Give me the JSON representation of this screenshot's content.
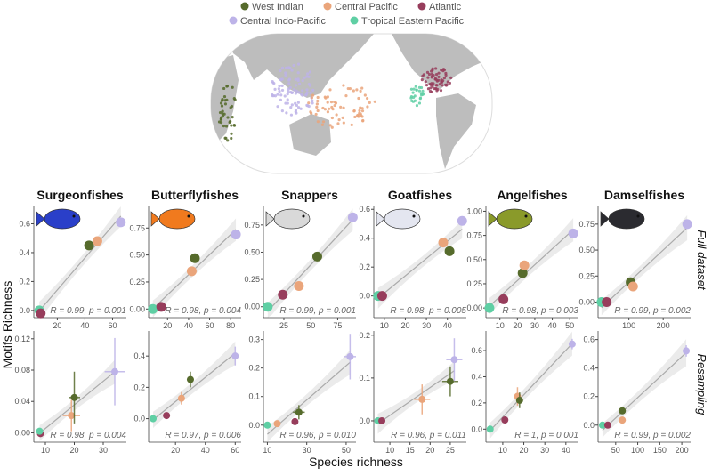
{
  "legend": {
    "items": [
      {
        "name": "West Indian",
        "color": "#566b2c"
      },
      {
        "name": "Central Pacific",
        "color": "#eaa57b"
      },
      {
        "name": "Atlantic",
        "color": "#973d5c"
      },
      {
        "name": "Central Indo-Pacific",
        "color": "#bdb3e8"
      },
      {
        "name": "Tropical Eastern Pacific",
        "color": "#5fcfa4"
      }
    ]
  },
  "chart_data": {
    "type": "scatter",
    "xlabel": "Species richness",
    "ylabel": "Motifs Richness",
    "row_labels": [
      "Full dataset",
      "Resampling"
    ],
    "grid": false,
    "fit": "linear regression line with gray confidence band",
    "panels": [
      {
        "family": "Surgeonfishes",
        "fish_color": "#2a3fc9",
        "full": {
          "xlim": [
            3,
            70
          ],
          "ylim": [
            -0.05,
            0.72
          ],
          "xticks": [
            20,
            40,
            60
          ],
          "yticks": [
            "0.0",
            "0.2",
            "0.4",
            "0.6"
          ],
          "stat": "R = 0.99, p = 0.001",
          "points": [
            {
              "region": "Tropical Eastern Pacific",
              "x": 7,
              "y": 0.0
            },
            {
              "region": "Atlantic",
              "x": 8,
              "y": -0.02
            },
            {
              "region": "West Indian",
              "x": 43,
              "y": 0.45
            },
            {
              "region": "Central Pacific",
              "x": 49,
              "y": 0.48
            },
            {
              "region": "Central Indo-Pacific",
              "x": 66,
              "y": 0.61
            }
          ]
        },
        "resampling": {
          "xlim": [
            6,
            38
          ],
          "ylim": [
            -0.012,
            0.13
          ],
          "xticks": [
            10,
            20,
            30
          ],
          "yticks": [
            "0.00",
            "0.04",
            "0.08",
            "0.12"
          ],
          "stat": "R = 0.98, p = 0.004",
          "points": [
            {
              "region": "Atlantic",
              "x": 8.3,
              "y": -0.001
            },
            {
              "region": "Tropical Eastern Pacific",
              "x": 8,
              "y": 0.002
            },
            {
              "region": "Central Pacific",
              "x": 19,
              "y": 0.022,
              "xerr": 3,
              "yerr": 0.02
            },
            {
              "region": "West Indian",
              "x": 20,
              "y": 0.045,
              "xerr": 2,
              "yerr": 0.033
            },
            {
              "region": "Central Indo-Pacific",
              "x": 34,
              "y": 0.078,
              "xerr": 3.5,
              "yerr": 0.043
            }
          ]
        }
      },
      {
        "family": "Butterflyfishes",
        "fish_color": "#f07a1e",
        "full": {
          "xlim": [
            2,
            90
          ],
          "ylim": [
            -0.08,
            0.95
          ],
          "xticks": [
            20,
            40,
            60,
            80
          ],
          "yticks": [
            "0.00",
            "0.25",
            "0.50",
            "0.75"
          ],
          "stat": "R = 0.98, p = 0.004",
          "points": [
            {
              "region": "Tropical Eastern Pacific",
              "x": 6,
              "y": 0.0
            },
            {
              "region": "Atlantic",
              "x": 14,
              "y": 0.02
            },
            {
              "region": "Central Pacific",
              "x": 43,
              "y": 0.35
            },
            {
              "region": "West Indian",
              "x": 46,
              "y": 0.47
            },
            {
              "region": "Central Indo-Pacific",
              "x": 85,
              "y": 0.69
            }
          ]
        },
        "resampling": {
          "xlim": [
            2,
            64
          ],
          "ylim": [
            -0.15,
            0.56
          ],
          "xticks": [
            20,
            40,
            60
          ],
          "yticks": [
            "0.0",
            "0.2",
            "0.4"
          ],
          "stat": "R = 0.97, p = 0.006",
          "points": [
            {
              "region": "Tropical Eastern Pacific",
              "x": 5,
              "y": 0.0
            },
            {
              "region": "Atlantic",
              "x": 14,
              "y": 0.02
            },
            {
              "region": "Central Pacific",
              "x": 24,
              "y": 0.13,
              "xerr": 1,
              "yerr": 0.04
            },
            {
              "region": "West Indian",
              "x": 30,
              "y": 0.25,
              "xerr": 1,
              "yerr": 0.05
            },
            {
              "region": "Central Indo-Pacific",
              "x": 60,
              "y": 0.4,
              "xerr": 2,
              "yerr": 0.06
            }
          ]
        }
      },
      {
        "family": "Snappers",
        "fish_color": "#d9d9d9",
        "full": {
          "xlim": [
            6,
            92
          ],
          "ylim": [
            -0.1,
            0.92
          ],
          "xticks": [
            25,
            50,
            75
          ],
          "yticks": [
            "0.00",
            "0.25",
            "0.50",
            "0.75"
          ],
          "stat": "R = 0.99, p = 0.001",
          "points": [
            {
              "region": "Tropical Eastern Pacific",
              "x": 10,
              "y": 0.0
            },
            {
              "region": "Atlantic",
              "x": 24,
              "y": 0.11
            },
            {
              "region": "Central Pacific",
              "x": 39,
              "y": 0.19
            },
            {
              "region": "West Indian",
              "x": 56,
              "y": 0.46
            },
            {
              "region": "Central Indo-Pacific",
              "x": 89,
              "y": 0.82
            }
          ]
        },
        "resampling": {
          "xlim": [
            8,
            55
          ],
          "ylim": [
            -0.06,
            0.33
          ],
          "xticks": [
            10,
            30,
            50
          ],
          "yticks": [
            "0.0",
            "0.1",
            "0.2",
            "0.3"
          ],
          "stat": "R = 0.96, p = 0.010",
          "points": [
            {
              "region": "Tropical Eastern Pacific",
              "x": 10,
              "y": 0.0
            },
            {
              "region": "Central Pacific",
              "x": 15,
              "y": 0.005
            },
            {
              "region": "Atlantic",
              "x": 24,
              "y": 0.012
            },
            {
              "region": "West Indian",
              "x": 26,
              "y": 0.045,
              "xerr": 3,
              "yerr": 0.025
            },
            {
              "region": "Central Indo-Pacific",
              "x": 52,
              "y": 0.24,
              "xerr": 3,
              "yerr": 0.08
            }
          ]
        }
      },
      {
        "family": "Goatfishes",
        "fish_color": "#e4e6f0",
        "full": {
          "xlim": [
            5,
            49
          ],
          "ylim": [
            -0.15,
            0.62
          ],
          "xticks": [
            10,
            20,
            30,
            40
          ],
          "yticks": [
            "0.0",
            "0.2",
            "0.4",
            "0.6"
          ],
          "stat": "R = 0.98, p = 0.005",
          "points": [
            {
              "region": "Tropical Eastern Pacific",
              "x": 7,
              "y": 0.0
            },
            {
              "region": "Atlantic",
              "x": 9,
              "y": 0.0
            },
            {
              "region": "Central Pacific",
              "x": 38,
              "y": 0.37
            },
            {
              "region": "West Indian",
              "x": 41,
              "y": 0.31
            },
            {
              "region": "Central Indo-Pacific",
              "x": 47,
              "y": 0.52
            }
          ]
        },
        "resampling": {
          "xlim": [
            6,
            29
          ],
          "ylim": [
            -0.05,
            0.21
          ],
          "xticks": [
            10,
            15,
            20,
            25
          ],
          "yticks": [
            "0.0",
            "0.1",
            "0.2"
          ],
          "stat": "R = 0.96, p = 0.011",
          "points": [
            {
              "region": "Tropical Eastern Pacific",
              "x": 7,
              "y": 0.0
            },
            {
              "region": "Atlantic",
              "x": 8,
              "y": 0.0
            },
            {
              "region": "Central Pacific",
              "x": 18,
              "y": 0.05,
              "xerr": 2,
              "yerr": 0.035
            },
            {
              "region": "West Indian",
              "x": 25,
              "y": 0.092,
              "xerr": 2,
              "yerr": 0.035
            },
            {
              "region": "Central Indo-Pacific",
              "x": 26,
              "y": 0.143,
              "xerr": 2,
              "yerr": 0.05
            }
          ]
        }
      },
      {
        "family": "Angelfishes",
        "fish_color": "#8a9a2a",
        "full": {
          "xlim": [
            2,
            55
          ],
          "ylim": [
            -0.1,
            1.05
          ],
          "xticks": [
            10,
            20,
            30,
            40,
            50
          ],
          "yticks": [
            "0.00",
            "0.25",
            "0.50",
            "0.75",
            "1.00"
          ],
          "stat": "R = 0.98, p = 0.003",
          "points": [
            {
              "region": "Tropical Eastern Pacific",
              "x": 4,
              "y": 0.0
            },
            {
              "region": "Atlantic",
              "x": 12,
              "y": 0.09
            },
            {
              "region": "West Indian",
              "x": 23,
              "y": 0.36
            },
            {
              "region": "Central Pacific",
              "x": 24,
              "y": 0.44
            },
            {
              "region": "Central Indo-Pacific",
              "x": 52,
              "y": 0.77
            }
          ]
        },
        "resampling": {
          "xlim": [
            2,
            46
          ],
          "ylim": [
            -0.1,
            0.75
          ],
          "xticks": [
            10,
            20,
            30,
            40
          ],
          "yticks": [
            "0.0",
            "0.2",
            "0.4",
            "0.6"
          ],
          "stat": "R = 1, p = 0.001",
          "points": [
            {
              "region": "Tropical Eastern Pacific",
              "x": 4,
              "y": 0.0
            },
            {
              "region": "Atlantic",
              "x": 11,
              "y": 0.07
            },
            {
              "region": "Central Pacific",
              "x": 17,
              "y": 0.25,
              "xerr": 0.8,
              "yerr": 0.07
            },
            {
              "region": "West Indian",
              "x": 18,
              "y": 0.22,
              "xerr": 0.8,
              "yerr": 0.06
            },
            {
              "region": "Central Indo-Pacific",
              "x": 43,
              "y": 0.65,
              "xerr": 0.8,
              "yerr": 0.04
            }
          ]
        }
      },
      {
        "family": "Damselfishes",
        "fish_color": "#2b2b30",
        "full": {
          "xlim": [
            10,
            280
          ],
          "ylim": [
            -0.15,
            0.92
          ],
          "xticks": [
            100,
            200
          ],
          "yticks": [
            "0.00",
            "0.25",
            "0.50",
            "0.75"
          ],
          "stat": "R = 0.99, p = 0.002",
          "points": [
            {
              "region": "Tropical Eastern Pacific",
              "x": 20,
              "y": 0.0
            },
            {
              "region": "Atlantic",
              "x": 35,
              "y": 0.0
            },
            {
              "region": "West Indian",
              "x": 105,
              "y": 0.19
            },
            {
              "region": "Central Pacific",
              "x": 112,
              "y": 0.15
            },
            {
              "region": "Central Indo-Pacific",
              "x": 270,
              "y": 0.75
            }
          ]
        },
        "resampling": {
          "xlim": [
            10,
            220
          ],
          "ylim": [
            -0.12,
            0.66
          ],
          "xticks": [
            50,
            100,
            150,
            200
          ],
          "yticks": [
            "0.0",
            "0.2",
            "0.4",
            "0.6"
          ],
          "stat": "R = 0.99, p = 0.002",
          "points": [
            {
              "region": "Tropical Eastern Pacific",
              "x": 20,
              "y": 0.0
            },
            {
              "region": "Atlantic",
              "x": 32,
              "y": 0.0
            },
            {
              "region": "West Indian",
              "x": 65,
              "y": 0.1
            },
            {
              "region": "Central Pacific",
              "x": 65,
              "y": 0.035
            },
            {
              "region": "Central Indo-Pacific",
              "x": 210,
              "y": 0.52,
              "xerr": 3,
              "yerr": 0.04
            }
          ]
        }
      }
    ]
  }
}
